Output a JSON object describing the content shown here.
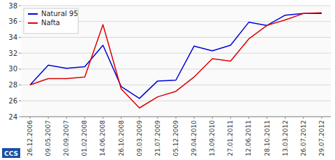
{
  "chart_data": {
    "type": "line",
    "categories": [
      "26.12.2006",
      "09.05.2007",
      "20.09.2007",
      "01.02.2008",
      "14.06.2008",
      "26.10.2008",
      "09.03.2009",
      "21.07.2009",
      "05.12.2009",
      "29.04.2010",
      "13.09.2010",
      "27.01.2011",
      "12.06.2011",
      "28.10.2011",
      "13.03.2012",
      "26.07.2012",
      "29.07.2012"
    ],
    "series": [
      {
        "name": "Natural 95",
        "color": "#0000dd",
        "values": [
          28.0,
          30.5,
          30.1,
          30.3,
          33.0,
          27.8,
          26.3,
          28.5,
          28.6,
          32.9,
          32.3,
          33.0,
          35.9,
          35.5,
          36.8,
          37.0,
          37.0
        ]
      },
      {
        "name": "Nafta",
        "color": "#dd0000",
        "values": [
          28.0,
          28.8,
          28.8,
          29.0,
          35.6,
          27.5,
          25.1,
          26.5,
          27.2,
          29.0,
          31.3,
          31.0,
          33.8,
          35.5,
          36.2,
          37.0,
          37.1
        ]
      }
    ],
    "ylim": [
      24,
      38
    ],
    "yticks": [
      24,
      26,
      28,
      30,
      32,
      34,
      36,
      38
    ],
    "grid": true,
    "legend": "upper-left",
    "annotations": [
      "CCS"
    ]
  }
}
